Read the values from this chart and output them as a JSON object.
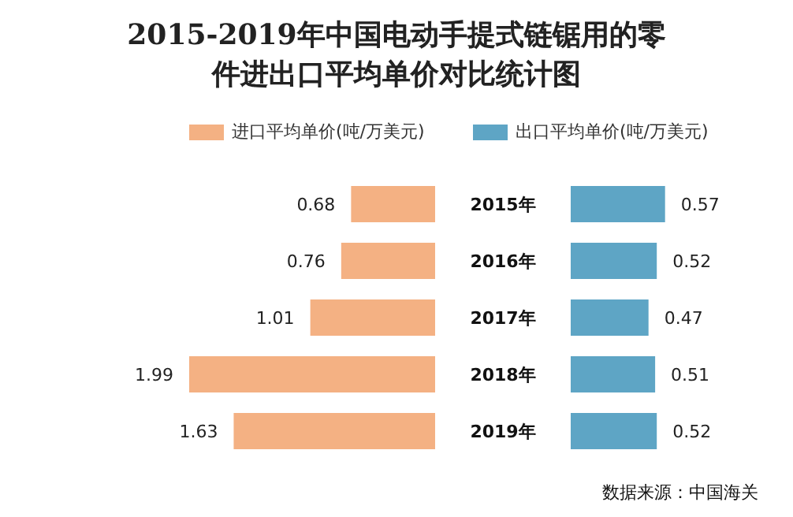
{
  "chart_data": [
    {
      "type": "bar",
      "orientation": "horizontal",
      "title": "2015-2019年中国电动手提式链锯用的零件进出口平均单价对比统计图",
      "categories": [
        "2015年",
        "2016年",
        "2017年",
        "2018年",
        "2019年"
      ],
      "series": [
        {
          "name": "进口平均单价(吨/万美元)",
          "color": "#f4b183",
          "values": [
            0.68,
            0.76,
            1.01,
            1.99,
            1.63
          ]
        }
      ],
      "data_labels": true,
      "legend": "top"
    },
    {
      "type": "bar",
      "orientation": "horizontal",
      "categories": [
        null,
        null,
        null,
        null,
        null
      ],
      "series": [
        {
          "name": "出口平均单价(吨/万美元)",
          "color": "#5ea5c5",
          "values": [
            0.57,
            0.52,
            0.47,
            0.51,
            0.52
          ]
        }
      ],
      "data_labels": true,
      "legend": "top",
      "annotations": [
        "数据来源：中国海关"
      ]
    }
  ]
}
